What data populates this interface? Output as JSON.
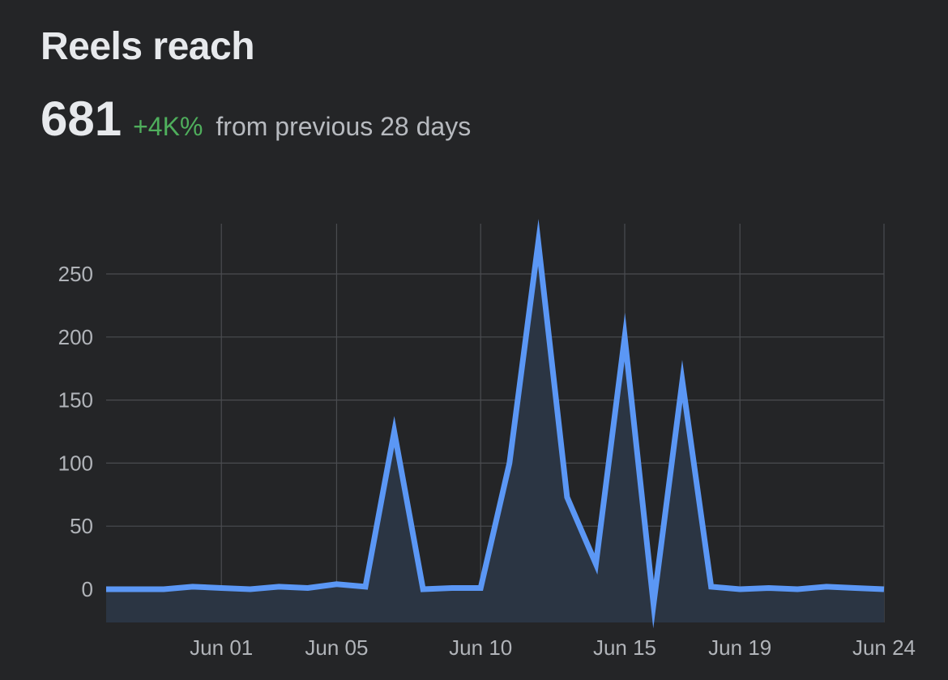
{
  "header": {
    "title": "Reels reach",
    "value": "681",
    "change": "+4K%",
    "change_suffix": "from previous 28 days"
  },
  "colors": {
    "background": "#242527",
    "line": "#5b97f5",
    "area": "#2b3543",
    "grid": "#4a4c50",
    "positive_change": "#4fae5c"
  },
  "chart_data": {
    "type": "area",
    "x": [
      "May 28",
      "May 29",
      "May 30",
      "May 31",
      "Jun 01",
      "Jun 02",
      "Jun 03",
      "Jun 04",
      "Jun 05",
      "Jun 06",
      "Jun 07",
      "Jun 08",
      "Jun 09",
      "Jun 10",
      "Jun 11",
      "Jun 12",
      "Jun 13",
      "Jun 14",
      "Jun 15",
      "Jun 16",
      "Jun 17",
      "Jun 18",
      "Jun 19",
      "Jun 20",
      "Jun 21",
      "Jun 22",
      "Jun 23",
      "Jun 24"
    ],
    "series": [
      {
        "values": [
          0,
          0,
          0,
          2,
          1,
          0,
          2,
          1,
          4,
          2,
          125,
          0,
          1,
          1,
          100,
          275,
          73,
          20,
          200,
          -12,
          165,
          2,
          0,
          1,
          0,
          2,
          1,
          0
        ]
      }
    ],
    "ylim": [
      -25,
      290
    ],
    "yticks": [
      "0",
      "50",
      "100",
      "150",
      "200",
      "250"
    ],
    "ytick_values": [
      0,
      50,
      100,
      150,
      200,
      250
    ],
    "xticks": [
      "Jun 01",
      "Jun 05",
      "Jun 10",
      "Jun 15",
      "Jun 19",
      "Jun 24"
    ],
    "xtick_values": [
      "Jun 01",
      "Jun 05",
      "Jun 10",
      "Jun 15",
      "Jun 19",
      "Jun 24"
    ],
    "grid": true,
    "xlabel": "",
    "ylabel": ""
  }
}
